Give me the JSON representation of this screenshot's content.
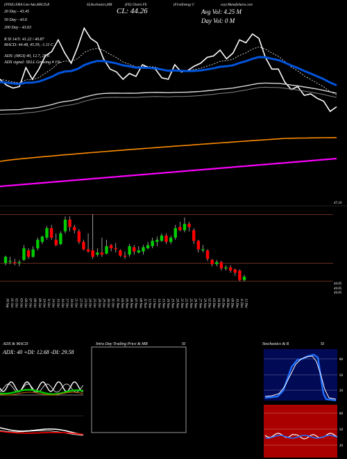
{
  "header": {
    "top_line": "(NYSE)  EMA Line Adx,MACD,R",
    "top_line2": "SI,Stochastics,MR",
    "top_line3": "(FE) Charts FE",
    "top_line4": "(FirstEnergy C",
    "top_line5": "orp) MunafaSutra.com",
    "cl": "CL: 44.26",
    "avg_vol": "Avg Vol: 4.25  M",
    "day_vol": "Day Vol: 0   M",
    "ema20": "20 Day - 43.45",
    "ema50": "50 Day - 43.6",
    "ema200": "200 Day - 43.63",
    "rsi": "R                SI 14/5: 41.22 / 40.87",
    "macd": "MACD: 44.48, 45.59, -1.11 C",
    "adx": "ADX:                    (MGI) 40, 12.7, 29.6",
    "adx_signal": "ADX  signal: SELL Growing #  1%"
  },
  "price_axis": {
    "top_label": "47.19",
    "low_labels": [
      "44.05",
      "44.05",
      "44.05"
    ]
  },
  "dates": [
    "30 Sep",
    "01 Oct",
    "02 Oct",
    "03 Oct",
    "04 Oct",
    "07 Oct",
    "08 Oct",
    "09 Oct",
    "10 Oct",
    "11 Oct",
    "14 Oct",
    "15 Oct",
    "16 Oct",
    "17 Oct",
    "18 Oct",
    "21 Oct",
    "22 Oct",
    "23 Oct",
    "24 Oct",
    "25 Oct",
    "28 Oct",
    "29 Oct",
    "30 Oct",
    "31 Oct",
    "01 Nov",
    "04 Nov",
    "05 Nov",
    "06 Nov",
    "07 Nov",
    "08 Nov",
    "11 Nov",
    "12 Nov",
    "13 Nov",
    "14 Nov",
    "15 Nov",
    "18 Nov",
    "19 Nov",
    "20 Nov",
    "21 Nov",
    "22 Nov",
    "25 Nov",
    "26 Nov",
    "27 Nov",
    "29 Nov",
    "02 Dec",
    "03 Dec",
    "04 Dec",
    "05 Dec",
    "06 Dec",
    "09 Dec",
    "10 Dec",
    "11 Dec",
    "12 Dec"
  ],
  "panels": {
    "adx_title": "ADX  & MACD",
    "adx_readout": "ADX: 40  +DI: 12.68  -DI: 29.58",
    "intra_title": "Intra  Day Trading Price  & MR",
    "intra_title2": "SI",
    "stoch_title": "Stochastics & R",
    "stoch_title2": "SI",
    "stoch_ticks": [
      "80",
      "50",
      "20"
    ],
    "rsi_ticks": [
      "80",
      "50",
      "20"
    ]
  },
  "colors": {
    "up": "#00cc00",
    "down": "#ff0000",
    "ema20": "#0055dd",
    "ema50": "#d8d8d8",
    "ema100": "#ff8c00",
    "ema200": "#ff00ff",
    "stoch_bg": "#000a55",
    "rsi_bg": "#aa0000"
  },
  "chart_data": {
    "type": "candlestick",
    "ylim": [
      43.6,
      47.6
    ],
    "close_overlay": [
      45.2,
      45.0,
      44.9,
      44.95,
      45.6,
      45.2,
      45.55,
      46.0,
      46.15,
      46.55,
      46.1,
      45.75,
      46.3,
      46.95,
      46.6,
      46.45,
      45.9,
      45.55,
      45.45,
      45.2,
      45.4,
      45.3,
      45.7,
      45.6,
      45.55,
      45.25,
      45.2,
      45.7,
      45.45,
      45.5,
      45.65,
      45.75,
      45.95,
      46.0,
      46.2,
      45.9,
      46.1,
      46.55,
      46.45,
      46.75,
      46.6,
      45.95,
      45.55,
      45.55,
      45.1,
      44.85,
      44.95,
      44.65,
      44.7,
      44.55,
      44.45,
      44.1,
      44.26
    ],
    "candles": [
      {
        "o": 44.9,
        "h": 45.25,
        "l": 44.8,
        "c": 45.2
      },
      {
        "o": 45.0,
        "h": 45.2,
        "l": 44.85,
        "c": 45.0
      },
      {
        "o": 44.95,
        "h": 45.1,
        "l": 44.8,
        "c": 44.9
      },
      {
        "o": 44.9,
        "h": 45.05,
        "l": 44.75,
        "c": 44.95
      },
      {
        "o": 45.05,
        "h": 45.75,
        "l": 45.0,
        "c": 45.6
      },
      {
        "o": 45.5,
        "h": 45.6,
        "l": 45.1,
        "c": 45.2
      },
      {
        "o": 45.2,
        "h": 45.7,
        "l": 45.15,
        "c": 45.55
      },
      {
        "o": 45.6,
        "h": 46.1,
        "l": 45.5,
        "c": 46.0
      },
      {
        "o": 45.9,
        "h": 46.2,
        "l": 45.8,
        "c": 46.15
      },
      {
        "o": 46.1,
        "h": 46.65,
        "l": 46.0,
        "c": 46.55
      },
      {
        "o": 46.55,
        "h": 46.7,
        "l": 46.0,
        "c": 46.1
      },
      {
        "o": 46.0,
        "h": 46.3,
        "l": 45.7,
        "c": 45.75
      },
      {
        "o": 45.8,
        "h": 46.4,
        "l": 45.75,
        "c": 46.3
      },
      {
        "o": 46.4,
        "h": 47.1,
        "l": 46.3,
        "c": 46.95
      },
      {
        "o": 46.95,
        "h": 47.1,
        "l": 46.4,
        "c": 46.6
      },
      {
        "o": 46.6,
        "h": 46.7,
        "l": 46.3,
        "c": 46.45
      },
      {
        "o": 46.4,
        "h": 46.5,
        "l": 45.8,
        "c": 45.9
      },
      {
        "o": 45.9,
        "h": 46.0,
        "l": 45.5,
        "c": 45.55
      },
      {
        "o": 45.55,
        "h": 46.3,
        "l": 45.4,
        "c": 45.45
      },
      {
        "o": 45.5,
        "h": 47.2,
        "l": 45.1,
        "c": 45.2
      },
      {
        "o": 45.3,
        "h": 45.6,
        "l": 45.2,
        "c": 45.4
      },
      {
        "o": 45.4,
        "h": 46.1,
        "l": 45.2,
        "c": 45.3
      },
      {
        "o": 45.35,
        "h": 46.0,
        "l": 45.3,
        "c": 45.7
      },
      {
        "o": 45.75,
        "h": 45.8,
        "l": 45.45,
        "c": 45.6
      },
      {
        "o": 45.6,
        "h": 45.85,
        "l": 45.4,
        "c": 45.55
      },
      {
        "o": 45.5,
        "h": 45.55,
        "l": 45.2,
        "c": 45.25
      },
      {
        "o": 45.25,
        "h": 45.45,
        "l": 45.1,
        "c": 45.2
      },
      {
        "o": 45.3,
        "h": 45.8,
        "l": 45.2,
        "c": 45.7
      },
      {
        "o": 45.65,
        "h": 45.75,
        "l": 45.3,
        "c": 45.45
      },
      {
        "o": 45.4,
        "h": 45.7,
        "l": 45.35,
        "c": 45.5
      },
      {
        "o": 45.45,
        "h": 45.75,
        "l": 45.3,
        "c": 45.65
      },
      {
        "o": 45.6,
        "h": 45.9,
        "l": 45.55,
        "c": 45.75
      },
      {
        "o": 45.7,
        "h": 46.1,
        "l": 45.6,
        "c": 45.95
      },
      {
        "o": 45.9,
        "h": 46.15,
        "l": 45.7,
        "c": 46.0
      },
      {
        "o": 45.95,
        "h": 46.3,
        "l": 45.9,
        "c": 46.2
      },
      {
        "o": 46.2,
        "h": 46.3,
        "l": 45.8,
        "c": 45.9
      },
      {
        "o": 45.9,
        "h": 46.2,
        "l": 45.8,
        "c": 46.1
      },
      {
        "o": 46.1,
        "h": 46.7,
        "l": 46.0,
        "c": 46.55
      },
      {
        "o": 46.6,
        "h": 46.85,
        "l": 46.4,
        "c": 46.45
      },
      {
        "o": 46.45,
        "h": 47.05,
        "l": 46.35,
        "c": 46.75
      },
      {
        "o": 46.75,
        "h": 46.85,
        "l": 46.4,
        "c": 46.6
      },
      {
        "o": 46.45,
        "h": 46.55,
        "l": 45.8,
        "c": 45.95
      },
      {
        "o": 45.95,
        "h": 46.0,
        "l": 45.4,
        "c": 45.55
      },
      {
        "o": 45.5,
        "h": 45.75,
        "l": 45.4,
        "c": 45.55
      },
      {
        "o": 45.5,
        "h": 45.55,
        "l": 45.0,
        "c": 45.1
      },
      {
        "o": 45.05,
        "h": 45.1,
        "l": 44.75,
        "c": 44.85
      },
      {
        "o": 44.85,
        "h": 45.05,
        "l": 44.75,
        "c": 44.95
      },
      {
        "o": 44.95,
        "h": 45.0,
        "l": 44.55,
        "c": 44.65
      },
      {
        "o": 44.65,
        "h": 44.8,
        "l": 44.55,
        "c": 44.7
      },
      {
        "o": 44.7,
        "h": 44.8,
        "l": 44.45,
        "c": 44.55
      },
      {
        "o": 44.6,
        "h": 44.65,
        "l": 44.3,
        "c": 44.45
      },
      {
        "o": 44.55,
        "h": 44.6,
        "l": 44.05,
        "c": 44.1
      },
      {
        "o": 44.1,
        "h": 44.35,
        "l": 44.05,
        "c": 44.26
      }
    ]
  }
}
